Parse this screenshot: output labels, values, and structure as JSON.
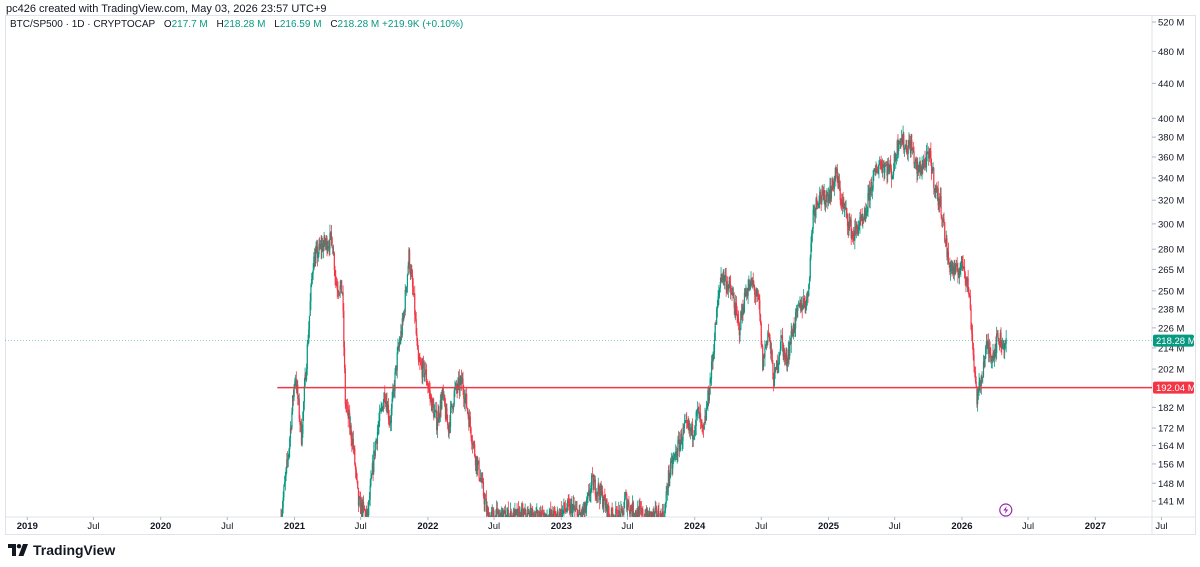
{
  "attribution": "pc426 created with TradingView.com, May 03, 2026 23:57 UTC+9",
  "legend": {
    "symbol": "BTC/SP500 · 1D · CRYPTOCAP",
    "o_label": "O",
    "o_value": "217.7 M",
    "h_label": "H",
    "h_value": "218.28 M",
    "l_label": "L",
    "l_value": "216.59 M",
    "c_label": "C",
    "c_value": "218.28 M",
    "change": "+219.9K (+0.10%)"
  },
  "brand": "TradingView",
  "colors": {
    "up": "#089981",
    "down": "#f23645",
    "level_line": "#f23645",
    "grid": "#f0f3fa",
    "axis_text": "#131722"
  },
  "icons": [
    "lightning-icon",
    "tradingview-logo-icon"
  ],
  "chart_data": {
    "type": "candlestick",
    "title": "BTC/SP500 · 1D · CRYPTOCAP",
    "y_scale": "log",
    "ylim": [
      135,
      530
    ],
    "xlim": [
      "2018-11-01",
      "2027-06-05"
    ],
    "grid": false,
    "y_ticks": [
      {
        "value": 520,
        "label": "520 M"
      },
      {
        "value": 480,
        "label": "480 M"
      },
      {
        "value": 440,
        "label": "440 M"
      },
      {
        "value": 400,
        "label": "400 M"
      },
      {
        "value": 380,
        "label": "380 M"
      },
      {
        "value": 360,
        "label": "360 M"
      },
      {
        "value": 340,
        "label": "340 M"
      },
      {
        "value": 320,
        "label": "320 M"
      },
      {
        "value": 300,
        "label": "300 M"
      },
      {
        "value": 280,
        "label": "280 M"
      },
      {
        "value": 265,
        "label": "265 M"
      },
      {
        "value": 250,
        "label": "250 M"
      },
      {
        "value": 238,
        "label": "238 M"
      },
      {
        "value": 226,
        "label": "226 M"
      },
      {
        "value": 214,
        "label": "214 M"
      },
      {
        "value": 202,
        "label": "202 M"
      },
      {
        "value": 182,
        "label": "182 M"
      },
      {
        "value": 172,
        "label": "172 M"
      },
      {
        "value": 164,
        "label": "164 M"
      },
      {
        "value": 156,
        "label": "156 M"
      },
      {
        "value": 148,
        "label": "148 M"
      },
      {
        "value": 141,
        "label": "141 M"
      }
    ],
    "x_ticks": [
      {
        "date": "2019-01-01",
        "label": "2019",
        "bold": true
      },
      {
        "date": "2019-07-01",
        "label": "Jul",
        "bold": false
      },
      {
        "date": "2020-01-01",
        "label": "2020",
        "bold": true
      },
      {
        "date": "2020-07-01",
        "label": "Jul",
        "bold": false
      },
      {
        "date": "2021-01-01",
        "label": "2021",
        "bold": true
      },
      {
        "date": "2021-07-01",
        "label": "Jul",
        "bold": false
      },
      {
        "date": "2022-01-01",
        "label": "2022",
        "bold": true
      },
      {
        "date": "2022-07-01",
        "label": "Jul",
        "bold": false
      },
      {
        "date": "2023-01-01",
        "label": "2023",
        "bold": true
      },
      {
        "date": "2023-07-01",
        "label": "Jul",
        "bold": false
      },
      {
        "date": "2024-01-01",
        "label": "2024",
        "bold": true
      },
      {
        "date": "2024-07-01",
        "label": "Jul",
        "bold": false
      },
      {
        "date": "2025-01-01",
        "label": "2025",
        "bold": true
      },
      {
        "date": "2025-07-01",
        "label": "Jul",
        "bold": false
      },
      {
        "date": "2026-01-01",
        "label": "2026",
        "bold": true
      },
      {
        "date": "2026-07-01",
        "label": "Jul",
        "bold": false
      },
      {
        "date": "2027-01-01",
        "label": "2027",
        "bold": true
      },
      {
        "date": "2027-07-01",
        "label": "Jul",
        "bold": false
      }
    ],
    "horizontal_line": {
      "value": 192.04,
      "label": "192.04 M",
      "start_date": "2020-11-15"
    },
    "last_price": {
      "value": 218.28,
      "label": "218.28 M"
    },
    "event_marker_date": "2026-05-01",
    "price_path": [
      [
        "2020-11-25",
        135
      ],
      [
        "2020-12-15",
        160
      ],
      [
        "2021-01-03",
        200
      ],
      [
        "2021-01-20",
        168
      ],
      [
        "2021-02-10",
        230
      ],
      [
        "2021-02-20",
        270
      ],
      [
        "2021-03-15",
        282
      ],
      [
        "2021-04-14",
        288
      ],
      [
        "2021-04-25",
        255
      ],
      [
        "2021-05-12",
        250
      ],
      [
        "2021-05-20",
        185
      ],
      [
        "2021-06-10",
        165
      ],
      [
        "2021-06-25",
        140
      ],
      [
        "2021-07-20",
        135
      ],
      [
        "2021-08-10",
        165
      ],
      [
        "2021-09-05",
        190
      ],
      [
        "2021-09-20",
        175
      ],
      [
        "2021-10-10",
        210
      ],
      [
        "2021-10-25",
        230
      ],
      [
        "2021-11-10",
        275
      ],
      [
        "2021-11-25",
        240
      ],
      [
        "2021-12-05",
        205
      ],
      [
        "2021-12-25",
        200
      ],
      [
        "2022-01-10",
        185
      ],
      [
        "2022-01-25",
        175
      ],
      [
        "2022-02-10",
        188
      ],
      [
        "2022-02-25",
        172
      ],
      [
        "2022-03-15",
        190
      ],
      [
        "2022-04-05",
        195
      ],
      [
        "2022-04-20",
        180
      ],
      [
        "2022-05-10",
        160
      ],
      [
        "2022-05-25",
        150
      ],
      [
        "2022-06-14",
        135
      ],
      [
        "2022-12-25",
        135
      ],
      [
        "2023-01-10",
        138
      ],
      [
        "2023-02-01",
        138
      ],
      [
        "2023-02-20",
        135
      ],
      [
        "2023-03-10",
        138
      ],
      [
        "2023-03-25",
        148
      ],
      [
        "2023-04-15",
        145
      ],
      [
        "2023-05-15",
        135
      ],
      [
        "2023-06-15",
        135
      ],
      [
        "2023-06-25",
        142
      ],
      [
        "2023-07-10",
        138
      ],
      [
        "2023-08-17",
        135
      ],
      [
        "2023-10-10",
        135
      ],
      [
        "2023-10-20",
        150
      ],
      [
        "2023-11-05",
        158
      ],
      [
        "2023-12-05",
        172
      ],
      [
        "2023-12-25",
        170
      ],
      [
        "2024-01-10",
        180
      ],
      [
        "2024-01-24",
        168
      ],
      [
        "2024-02-15",
        200
      ],
      [
        "2024-02-28",
        230
      ],
      [
        "2024-03-13",
        262
      ],
      [
        "2024-03-25",
        258
      ],
      [
        "2024-04-15",
        245
      ],
      [
        "2024-05-01",
        225
      ],
      [
        "2024-05-20",
        250
      ],
      [
        "2024-06-07",
        255
      ],
      [
        "2024-06-25",
        240
      ],
      [
        "2024-07-05",
        205
      ],
      [
        "2024-07-20",
        225
      ],
      [
        "2024-08-05",
        195
      ],
      [
        "2024-08-25",
        220
      ],
      [
        "2024-09-06",
        205
      ],
      [
        "2024-09-25",
        225
      ],
      [
        "2024-10-15",
        240
      ],
      [
        "2024-11-05",
        245
      ],
      [
        "2024-11-20",
        310
      ],
      [
        "2024-12-05",
        325
      ],
      [
        "2024-12-18",
        320
      ],
      [
        "2025-01-10",
        330
      ],
      [
        "2025-01-21",
        345
      ],
      [
        "2025-02-05",
        320
      ],
      [
        "2025-03-10",
        290
      ],
      [
        "2025-03-25",
        300
      ],
      [
        "2025-04-08",
        300
      ],
      [
        "2025-04-25",
        330
      ],
      [
        "2025-05-20",
        355
      ],
      [
        "2025-06-10",
        350
      ],
      [
        "2025-06-25",
        345
      ],
      [
        "2025-07-14",
        382
      ],
      [
        "2025-07-30",
        370
      ],
      [
        "2025-08-15",
        372
      ],
      [
        "2025-09-01",
        345
      ],
      [
        "2025-09-20",
        355
      ],
      [
        "2025-10-06",
        360
      ],
      [
        "2025-10-20",
        330
      ],
      [
        "2025-11-05",
        315
      ],
      [
        "2025-11-25",
        270
      ],
      [
        "2025-12-15",
        262
      ],
      [
        "2026-01-05",
        270
      ],
      [
        "2026-01-20",
        250
      ],
      [
        "2026-02-05",
        200
      ],
      [
        "2026-02-12",
        185
      ],
      [
        "2026-02-25",
        200
      ],
      [
        "2026-03-10",
        215
      ],
      [
        "2026-03-25",
        210
      ],
      [
        "2026-04-10",
        220
      ],
      [
        "2026-04-25",
        216
      ],
      [
        "2026-05-03",
        218.28
      ]
    ]
  }
}
